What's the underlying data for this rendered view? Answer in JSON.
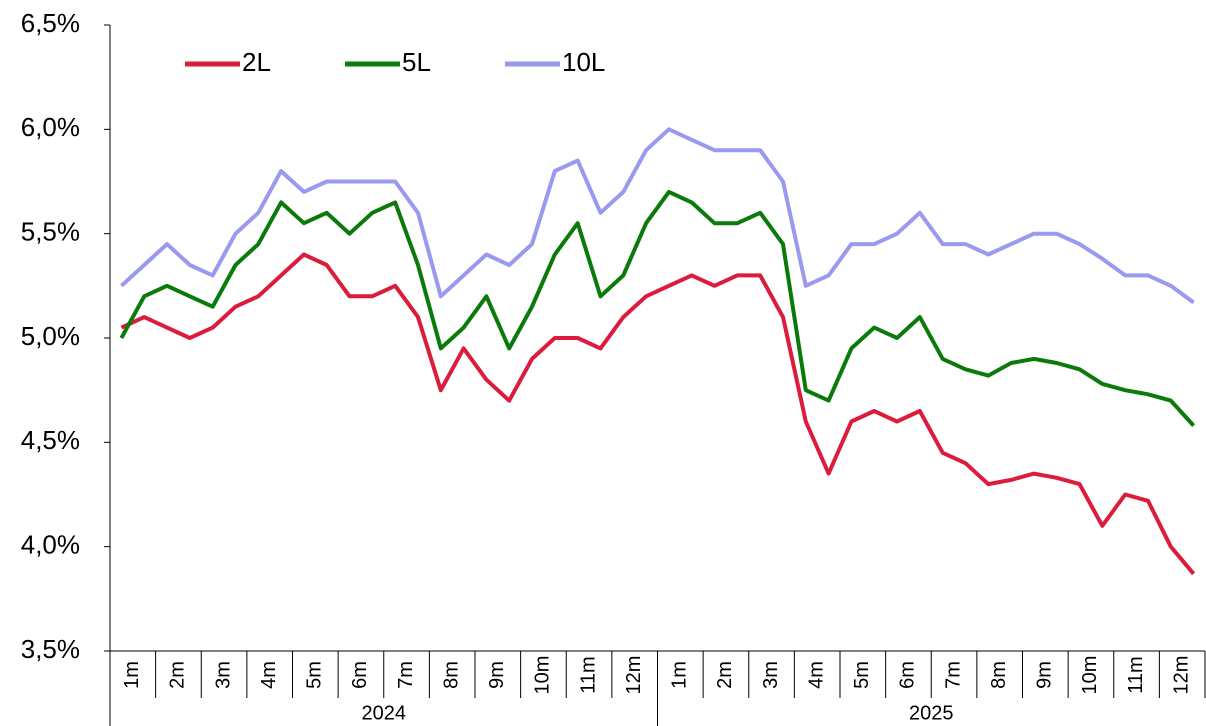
{
  "chart_data": {
    "type": "line",
    "categories": [
      "1m",
      null,
      "2m",
      null,
      "3m",
      null,
      "4m",
      null,
      "5m",
      null,
      "6m",
      null,
      "7m",
      null,
      "8m",
      null,
      "9m",
      null,
      "10m",
      null,
      "11m",
      null,
      "12m",
      null,
      "1m",
      null,
      "2m",
      null,
      "3m",
      null,
      "4m",
      null,
      "5m",
      null,
      "6m",
      null,
      "7m",
      null,
      "8m",
      null,
      "9m",
      null,
      "10m",
      null,
      "11m",
      null,
      "12m",
      null
    ],
    "years": [
      "2024",
      "2025"
    ],
    "series": [
      {
        "name": "2L",
        "color": "#dc1c3c",
        "values": [
          5.05,
          5.1,
          5.05,
          5.0,
          5.05,
          5.15,
          5.2,
          5.3,
          5.4,
          5.35,
          5.2,
          5.2,
          5.25,
          5.1,
          4.75,
          4.95,
          4.8,
          4.7,
          4.9,
          5.0,
          5.0,
          4.95,
          5.1,
          5.2,
          5.25,
          5.3,
          5.25,
          5.3,
          5.3,
          5.1,
          4.6,
          4.35,
          4.6,
          4.65,
          4.6,
          4.65,
          4.45,
          4.4,
          4.3,
          4.32,
          4.35,
          4.33,
          4.3,
          4.1,
          4.25,
          4.22,
          4.0,
          3.87
        ]
      },
      {
        "name": "5L",
        "color": "#0a7a0a",
        "values": [
          5.0,
          5.2,
          5.25,
          5.2,
          5.15,
          5.35,
          5.45,
          5.65,
          5.55,
          5.6,
          5.5,
          5.6,
          5.65,
          5.35,
          4.95,
          5.05,
          5.2,
          4.95,
          5.15,
          5.4,
          5.55,
          5.2,
          5.3,
          5.55,
          5.7,
          5.65,
          5.55,
          5.55,
          5.6,
          5.45,
          4.75,
          4.7,
          4.95,
          5.05,
          5.0,
          5.1,
          4.9,
          4.85,
          4.82,
          4.88,
          4.9,
          4.88,
          4.85,
          4.78,
          4.75,
          4.73,
          4.7,
          4.58
        ]
      },
      {
        "name": "10L",
        "color": "#9999f0",
        "values": [
          5.25,
          5.35,
          5.45,
          5.35,
          5.3,
          5.5,
          5.6,
          5.8,
          5.7,
          5.75,
          5.75,
          5.75,
          5.75,
          5.6,
          5.2,
          5.3,
          5.4,
          5.35,
          5.45,
          5.8,
          5.85,
          5.6,
          5.7,
          5.9,
          6.0,
          5.95,
          5.9,
          5.9,
          5.9,
          5.75,
          5.25,
          5.3,
          5.45,
          5.45,
          5.5,
          5.6,
          5.45,
          5.45,
          5.4,
          5.45,
          5.5,
          5.5,
          5.45,
          5.38,
          5.3,
          5.3,
          5.25,
          5.17
        ]
      }
    ],
    "ylim": [
      3.5,
      6.5
    ],
    "yticks": [
      {
        "value": 3.5,
        "label": "3,5%"
      },
      {
        "value": 4.0,
        "label": "4,0%"
      },
      {
        "value": 4.5,
        "label": "4,5%"
      },
      {
        "value": 5.0,
        "label": "5,0%"
      },
      {
        "value": 5.5,
        "label": "5,5%"
      },
      {
        "value": 6.0,
        "label": "6,0%"
      },
      {
        "value": 6.5,
        "label": "6,5%"
      }
    ],
    "grid": false,
    "legend": "top-left"
  }
}
